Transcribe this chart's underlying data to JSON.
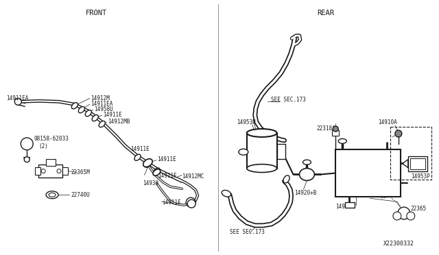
{
  "bg_color": "#ffffff",
  "line_color": "#1a1a1a",
  "text_color": "#1a1a1a",
  "front_label": "FRONT",
  "rear_label": "REAR",
  "diagram_number": "X22300332"
}
